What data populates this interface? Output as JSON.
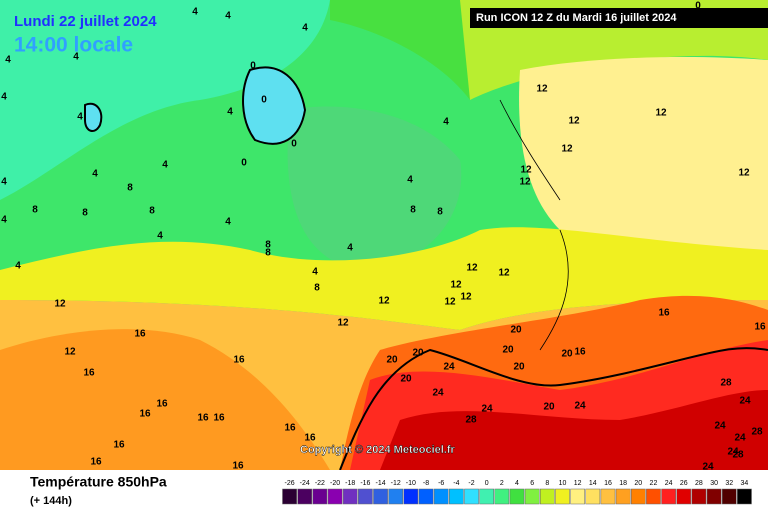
{
  "header": {
    "date": "Lundi 22 juillet 2024",
    "time": "14:00 locale",
    "run": "Run ICON 12 Z du Mardi 16 juillet 2024"
  },
  "copyright": "Copyright © 2024 Meteociel.fr",
  "footer": {
    "title": "Température 850hPa",
    "lead": "(+ 144h)"
  },
  "legend": {
    "labels": [
      "-26",
      "-24",
      "-22",
      "-20",
      "-18",
      "-16",
      "-14",
      "-12",
      "-10",
      "-8",
      "-6",
      "-4",
      "-2",
      "0",
      "2",
      "4",
      "6",
      "8",
      "10",
      "12",
      "14",
      "16",
      "18",
      "20",
      "22",
      "24",
      "26",
      "28",
      "30",
      "32",
      "34"
    ],
    "colors": [
      "#2b0033",
      "#4b0060",
      "#6a0090",
      "#8a00b0",
      "#7030c0",
      "#5050d0",
      "#3060e0",
      "#2080f0",
      "#0030ff",
      "#0060ff",
      "#0090ff",
      "#00c0ff",
      "#30e0ff",
      "#40f0b0",
      "#40f080",
      "#40e040",
      "#80f040",
      "#c0f020",
      "#f0f020",
      "#fff080",
      "#ffe060",
      "#ffc040",
      "#ffa020",
      "#ff8000",
      "#ff5000",
      "#ff2020",
      "#e00000",
      "#b00000",
      "#800000",
      "#500000",
      "#000000"
    ]
  },
  "contour_labels": [
    "4",
    "4",
    "4",
    "4",
    "4",
    "4",
    "4",
    "4",
    "4",
    "4",
    "4",
    "4",
    "4",
    "4",
    "4",
    "4",
    "4",
    "4",
    "4",
    "0",
    "0",
    "0",
    "0",
    "0",
    "8",
    "8",
    "8",
    "8",
    "8",
    "8",
    "8",
    "8",
    "8",
    "12",
    "12",
    "12",
    "12",
    "12",
    "12",
    "12",
    "12",
    "12",
    "12",
    "12",
    "12",
    "12",
    "12",
    "12",
    "12",
    "16",
    "16",
    "16",
    "16",
    "16",
    "16",
    "16",
    "16",
    "16",
    "16",
    "16",
    "16",
    "16",
    "16",
    "16",
    "20",
    "20",
    "20",
    "20",
    "20",
    "20",
    "20",
    "20",
    "24",
    "24",
    "24",
    "24",
    "24",
    "24",
    "24",
    "24",
    "24",
    "28",
    "28",
    "28",
    "28"
  ]
}
